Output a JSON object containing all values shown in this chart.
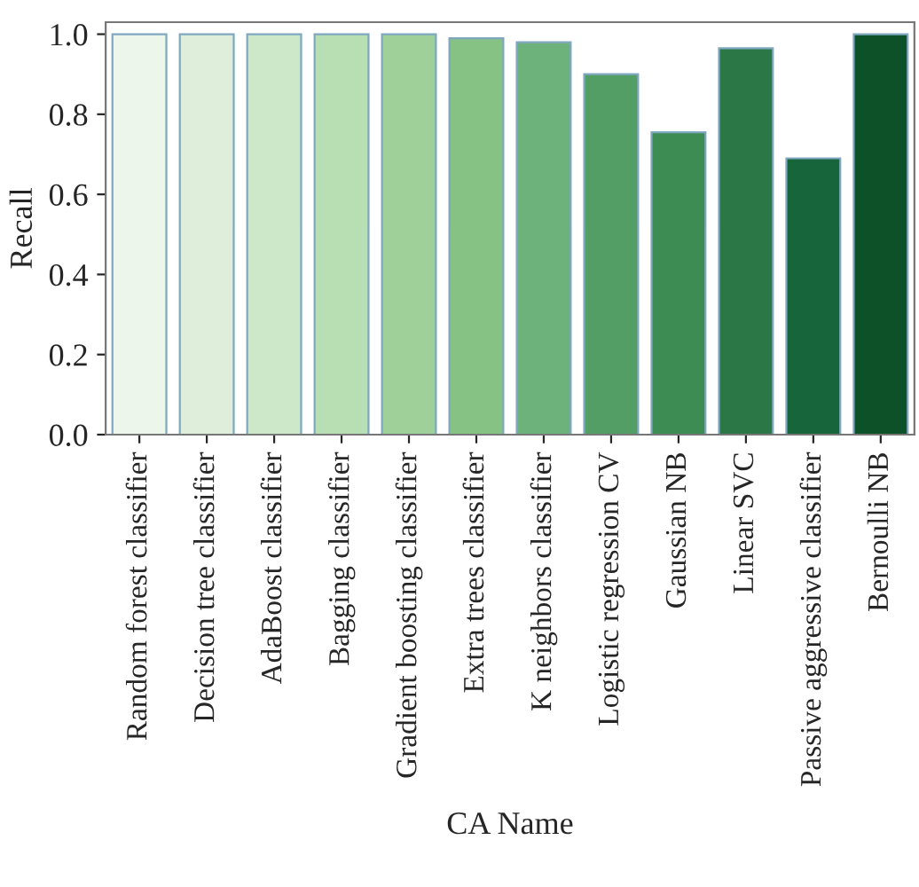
{
  "chart_data": {
    "type": "bar",
    "xlabel": "CA Name",
    "ylabel": "Recall",
    "categories": [
      "Random forest classifier",
      "Decision tree classifier",
      "AdaBoost classifier",
      "Bagging classifier",
      "Gradient boosting classifier",
      "Extra trees classifier",
      "K neighbors classifier",
      "Logistic regression CV",
      "Gaussian NB",
      "Linear SVC",
      "Passive aggressive classifier",
      "Bernoulli NB"
    ],
    "values": [
      1.0,
      1.0,
      1.0,
      1.0,
      1.0,
      0.99,
      0.98,
      0.9,
      0.755,
      0.965,
      0.69,
      1.0
    ],
    "colors": [
      "#edf6ea",
      "#deeedb",
      "#cce8c8",
      "#b8dfb3",
      "#a0d09a",
      "#86c283",
      "#6db27a",
      "#529e65",
      "#3d8c54",
      "#2b7846",
      "#17653a",
      "#0d5128"
    ],
    "ylim": [
      0,
      1.03
    ],
    "yticks": [
      {
        "value": 0,
        "label": "0.0"
      },
      {
        "value": 0.2,
        "label": "0.2"
      },
      {
        "value": 0.4,
        "label": "0.4"
      },
      {
        "value": 0.6,
        "label": "0.6"
      },
      {
        "value": 0.8,
        "label": "0.8"
      },
      {
        "value": 1.0,
        "label": "1.0"
      }
    ],
    "grid": false,
    "legend": false
  }
}
